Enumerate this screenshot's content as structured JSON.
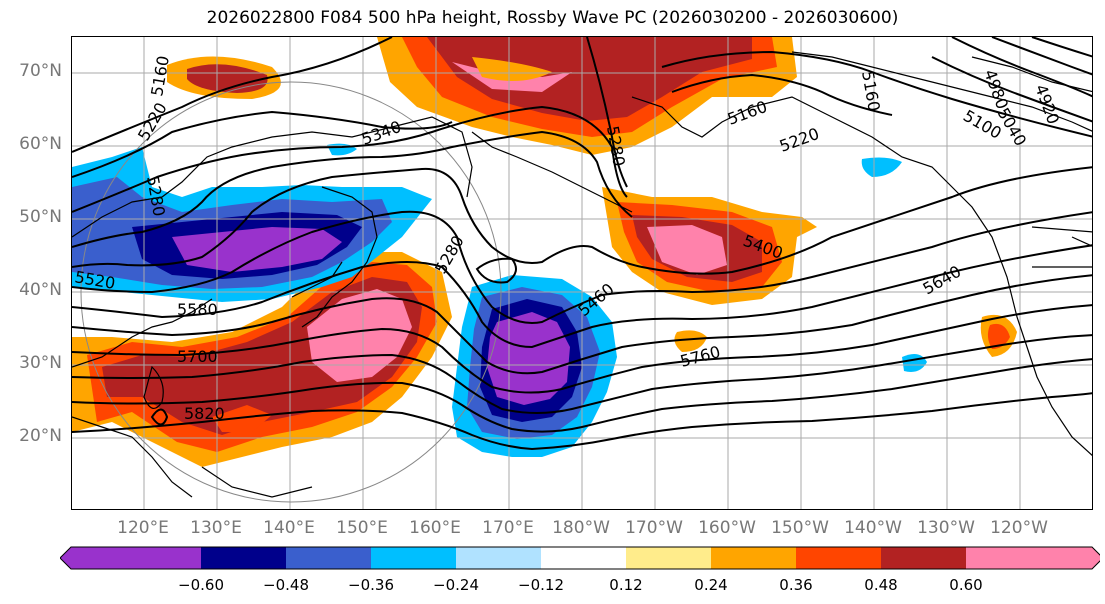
{
  "title": "2026022800 F084 500 hPa height, Rossby Wave PC (2026030200 - 2026030600)",
  "lat_labels": [
    "70°N",
    "60°N",
    "50°N",
    "40°N",
    "30°N",
    "20°N"
  ],
  "lon_labels": [
    "120°E",
    "130°E",
    "140°E",
    "150°E",
    "160°E",
    "170°E",
    "180°W",
    "170°W",
    "160°W",
    "150°W",
    "140°W",
    "130°W",
    "120°W"
  ],
  "contour_labels": [
    {
      "text": "5160",
      "rot": -80
    },
    {
      "text": "5220",
      "rot": -60
    },
    {
      "text": "5280",
      "rot": 80
    },
    {
      "text": "5340",
      "rot": -20
    },
    {
      "text": "5280",
      "rot": 80
    },
    {
      "text": "5160",
      "rot": -20
    },
    {
      "text": "5220",
      "rot": -20
    },
    {
      "text": "5160",
      "rot": 80
    },
    {
      "text": "5100",
      "rot": 30
    },
    {
      "text": "5040",
      "rot": 60
    },
    {
      "text": "4980",
      "rot": 70
    },
    {
      "text": "4920",
      "rot": 70
    },
    {
      "text": "5400",
      "rot": 20
    },
    {
      "text": "5640",
      "rot": -30
    },
    {
      "text": "5280",
      "rot": -60
    },
    {
      "text": "5460",
      "rot": -40
    },
    {
      "text": "5760",
      "rot": -15
    },
    {
      "text": "5520",
      "rot": 10
    },
    {
      "text": "5580",
      "rot": 0
    },
    {
      "text": "5700",
      "rot": 0
    },
    {
      "text": "5820",
      "rot": 0
    }
  ],
  "colorbar": {
    "colors": [
      "#9932cc",
      "#00008b",
      "#3a5fcd",
      "#00bfff",
      "#b0e2ff",
      "#ffffff",
      "#ffec8b",
      "#ffa500",
      "#ff4500",
      "#b22222",
      "#ff82ab"
    ],
    "ticks": [
      "−0.60",
      "−0.48",
      "−0.36",
      "−0.24",
      "−0.12",
      "0.12",
      "0.24",
      "0.36",
      "0.48",
      "0.60"
    ]
  }
}
